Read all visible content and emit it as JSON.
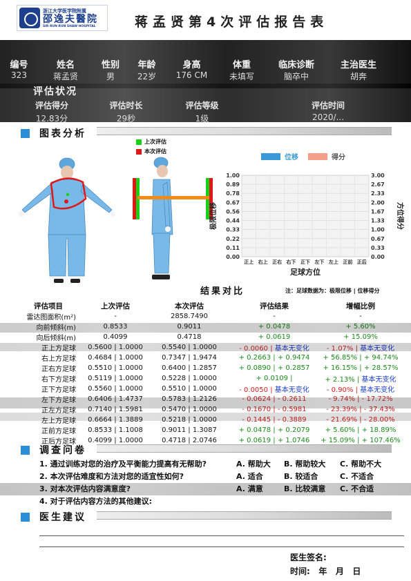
{
  "header": {
    "logo_top": "浙江大学医学院附属",
    "logo_main": "邵逸夫醫院",
    "logo_en": "SIR RUN RUN SHAW HOSPITAL",
    "title": "蒋孟贤第4次评估报告表"
  },
  "patient": {
    "labels": [
      "编号",
      "姓名",
      "性别",
      "年龄",
      "身高",
      "体重",
      "临床诊断",
      "主治医生"
    ],
    "values": [
      "323",
      "蒋孟贤",
      "男",
      "22岁",
      "176 CM",
      "未填写",
      "脑卒中",
      "胡奔"
    ]
  },
  "assessment": {
    "heading": "评估状况",
    "labels": [
      "评估得分",
      "评估时长",
      "评估等级",
      "评估时间"
    ],
    "values": [
      "12.83分",
      "29秒",
      "1级",
      "2020/..."
    ]
  },
  "chart_section": {
    "heading": "图表分析",
    "legend_last": "上次评估",
    "legend_this": "本次评估",
    "colors": {
      "last": "#18d018",
      "this": "#e01818",
      "shift": "#f08a18",
      "figure": "#79b9e8"
    }
  },
  "chart_data": {
    "type": "bar",
    "categories": [
      "正上",
      "右上",
      "正右",
      "右下",
      "正下",
      "左下",
      "左上",
      "正前",
      "正后"
    ],
    "series": [
      {
        "name": "位移",
        "color": "#3a9ad9",
        "values": [
          0,
          0,
          0,
          0,
          0,
          0,
          0,
          0,
          0
        ]
      },
      {
        "name": "得分",
        "color": "#f4a089",
        "values": [
          0,
          0,
          0,
          0,
          0,
          0,
          0,
          0,
          0
        ]
      }
    ],
    "xlabel": "足球方位",
    "ylabel_left": "极限位移",
    "ylabel_right": "方位得分",
    "y_left_ticks": [
      "1.00",
      "0.89",
      "0.78",
      "0.67",
      "0.56",
      "0.44",
      "0.33",
      "0.22",
      "0.11",
      "0.00"
    ],
    "y_right_ticks": [
      "3.00",
      "2.67",
      "2.33",
      "2.00",
      "1.67",
      "1.33",
      "1.00",
      "0.67",
      "0.33",
      "0.00"
    ],
    "ylim_left": [
      0,
      1
    ],
    "ylim_right": [
      0,
      3
    ],
    "grid": true,
    "legend": "top"
  },
  "results": {
    "title": "结果对比",
    "note": "注：足球数据为：极限位移 | 位移得分",
    "headers": [
      "评估项目",
      "上次评估",
      "本次评估",
      "评估结果",
      "增幅比例"
    ],
    "rows": [
      {
        "name": "雷达图面积(m²)",
        "last": "-",
        "now": "2858.7490",
        "result": "-",
        "rc": "",
        "ratio": "-",
        "pc": ""
      },
      {
        "name": "向前倾斜(m)",
        "last": "0.8533",
        "now": "0.9011",
        "result": "+ 0.0478",
        "rc": "g",
        "ratio": "+ 5.60%",
        "pc": "g"
      },
      {
        "name": "向后倾斜(m)",
        "last": "0.4099",
        "now": "0.4718",
        "result": "+ 0.0619",
        "rc": "g",
        "ratio": "+ 15.09%",
        "pc": "g"
      },
      {
        "name": "正上方足球",
        "last": "0.5600 | 1.0000",
        "now": "0.5540 | 1.0000",
        "result_a": "- 0.0060 | ",
        "ra": "r",
        "result_b": "基本无变化",
        "rb": "b",
        "ratio_a": "- 1.07% | ",
        "pa": "r",
        "ratio_b": "基本无变化",
        "pb": "b"
      },
      {
        "name": "右上方足球",
        "last": "0.4684 | 1.0000",
        "now": "0.7347 | 1.9474",
        "result_a": "+ 0.2663 | ",
        "ra": "g",
        "result_b": "+ 0.9474",
        "rb": "g",
        "ratio_a": "+ 56.85% | ",
        "pa": "g",
        "ratio_b": "+ 94.74%",
        "pb": "g"
      },
      {
        "name": "正右方足球",
        "last": "0.5510 | 1.0000",
        "now": "0.6400 | 1.2857",
        "result_a": "+ 0.0890 | ",
        "ra": "g",
        "result_b": "+ 0.2857",
        "rb": "g",
        "ratio_a": "+ 16.15% | ",
        "pa": "g",
        "ratio_b": "+ 28.57%",
        "pb": "g"
      },
      {
        "name": "右下方足球",
        "last": "0.5119 | 1.0000",
        "now": "0.5228 | 1.0000",
        "result_a": "+ 0.0109 | ",
        "ra": "g",
        "result_b": "",
        "rb": "g",
        "ratio_a": "+ 2.13% | ",
        "pa": "g",
        "ratio_b": "基本无变化",
        "pb": "b"
      },
      {
        "name": "正下方足球",
        "last": "0.5560 | 1.0000",
        "now": "0.5510 | 1.0000",
        "result_a": "- 0.0050 | ",
        "ra": "r",
        "result_b": "基本无变化",
        "rb": "b",
        "ratio_a": "- 0.90% | ",
        "pa": "r",
        "ratio_b": "基本无变化",
        "pb": "b"
      },
      {
        "name": "左下方足球",
        "last": "0.6406 | 1.4737",
        "now": "0.5783 | 1.2126",
        "result_a": "- 0.0624 | ",
        "ra": "r",
        "result_b": "- 0.2611",
        "rb": "r",
        "ratio_a": "- 9.74% | ",
        "pa": "r",
        "ratio_b": "- 17.72%",
        "pb": "r"
      },
      {
        "name": "正左方足球",
        "last": "0.7140 | 1.5981",
        "now": "0.5470 | 1.0000",
        "result_a": "- 0.1670 | ",
        "ra": "r",
        "result_b": "- 0.5981",
        "rb": "r",
        "ratio_a": "- 23.39% | ",
        "pa": "r",
        "ratio_b": "- 37.43%",
        "pb": "r"
      },
      {
        "name": "左上方足球",
        "last": "0.6664 | 1.3889",
        "now": "0.5218 | 1.0000",
        "result_a": "- 0.1445 | ",
        "ra": "r",
        "result_b": "- 0.3889",
        "rb": "r",
        "ratio_a": "- 21.69% | ",
        "pa": "r",
        "ratio_b": "- 28.00%",
        "pb": "r"
      },
      {
        "name": "正前方足球",
        "last": "0.8533 | 1.1008",
        "now": "0.9011 | 1.3087",
        "result_a": "+ 0.0478 | ",
        "ra": "g",
        "result_b": "+ 0.2079",
        "rb": "g",
        "ratio_a": "+ 5.60% | ",
        "pa": "g",
        "ratio_b": "+ 18.89%",
        "pb": "g"
      },
      {
        "name": "正后方足球",
        "last": "0.4099 | 1.0000",
        "now": "0.4718 | 2.0746",
        "result_a": "+ 0.0619 | ",
        "ra": "g",
        "result_b": "+ 1.0746",
        "rb": "g",
        "ratio_a": "+ 15.09% | ",
        "pa": "g",
        "ratio_b": "+ 107.46%",
        "pb": "g"
      }
    ]
  },
  "survey": {
    "heading": "调查问卷",
    "questions": [
      {
        "q": "1. 通过训练对您的治疗及平衡能力提高有无帮助?",
        "a": "A. 帮助大",
        "b": "B. 帮助较大",
        "c": "C. 帮助不大"
      },
      {
        "q": "2. 本次评估难度和方法对您的适宜性如何?",
        "a": "A. 适合",
        "b": "B. 较适合",
        "c": "C. 不适合"
      },
      {
        "q": "3. 对本次评估内容满意度?",
        "a": "A. 满意",
        "b": "B. 比较满意",
        "c": "C. 不合适"
      },
      {
        "q": "4. 对于评估内容方法的其他建议:",
        "a": "",
        "b": "",
        "c": ""
      }
    ]
  },
  "advice": {
    "heading": "医生建议",
    "signature": "医生签名:",
    "date": "时间:   年   月   日"
  }
}
